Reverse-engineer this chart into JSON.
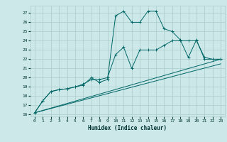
{
  "xlabel": "Humidex (Indice chaleur)",
  "bg_color": "#cce8e8",
  "grid_color": "#aacccc",
  "line_color": "#006666",
  "xlim": [
    -0.5,
    23.5
  ],
  "ylim": [
    15.8,
    27.8
  ],
  "yticks": [
    16,
    17,
    18,
    19,
    20,
    21,
    22,
    23,
    24,
    25,
    26,
    27
  ],
  "xticks": [
    0,
    1,
    2,
    3,
    4,
    5,
    6,
    7,
    8,
    9,
    10,
    11,
    12,
    13,
    14,
    15,
    16,
    17,
    18,
    19,
    20,
    21,
    22,
    23
  ],
  "series1_x": [
    0,
    1,
    2,
    3,
    4,
    5,
    6,
    7,
    8,
    9,
    10,
    11,
    12,
    13,
    14,
    15,
    16,
    17,
    18,
    19,
    20,
    21,
    22,
    23
  ],
  "series1_y": [
    16.2,
    17.5,
    18.5,
    18.7,
    18.8,
    19.0,
    19.2,
    20.0,
    19.5,
    19.8,
    26.7,
    27.2,
    26.0,
    26.0,
    27.2,
    27.2,
    25.3,
    25.0,
    24.1,
    22.2,
    24.1,
    22.0,
    22.0,
    22.0
  ],
  "series2_x": [
    0,
    1,
    2,
    3,
    4,
    5,
    6,
    7,
    8,
    9,
    10,
    11,
    12,
    13,
    14,
    15,
    16,
    17,
    18,
    19,
    20,
    21,
    22,
    23
  ],
  "series2_y": [
    16.2,
    17.5,
    18.5,
    18.7,
    18.8,
    19.0,
    19.3,
    19.8,
    19.8,
    20.0,
    22.5,
    23.3,
    21.0,
    23.0,
    23.0,
    23.0,
    23.5,
    24.0,
    24.0,
    24.0,
    24.0,
    22.2,
    22.0,
    22.0
  ],
  "series3_x": [
    0,
    23
  ],
  "series3_y": [
    16.2,
    22.0
  ],
  "series4_x": [
    0,
    23
  ],
  "series4_y": [
    16.2,
    21.5
  ]
}
